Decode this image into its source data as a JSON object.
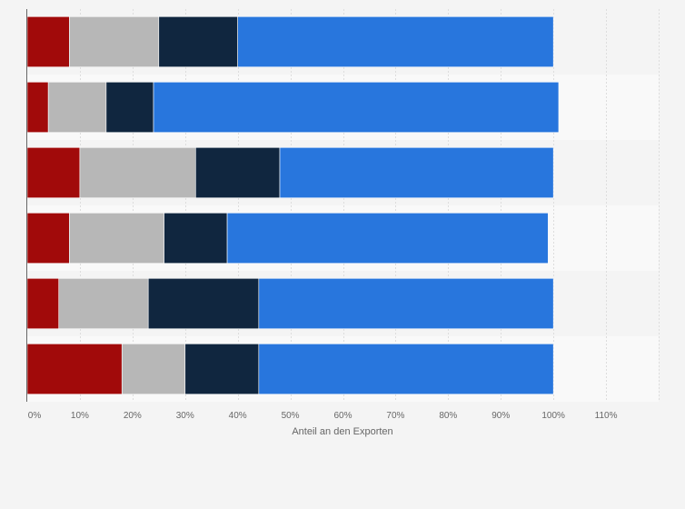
{
  "chart_data": {
    "type": "bar",
    "orientation": "horizontal",
    "stacked": true,
    "categories": [
      "",
      "",
      "",
      "",
      "",
      ""
    ],
    "series": [
      {
        "name": "",
        "color": "#a10a0a",
        "values": [
          8,
          4,
          10,
          8,
          6,
          18
        ]
      },
      {
        "name": "",
        "color": "#b7b7b7",
        "values": [
          17,
          11,
          22,
          18,
          17,
          12
        ]
      },
      {
        "name": "",
        "color": "#10263f",
        "values": [
          15,
          9,
          16,
          12,
          21,
          14
        ]
      },
      {
        "name": "",
        "color": "#2876dd",
        "values": [
          60,
          77,
          52,
          61,
          56,
          56
        ]
      }
    ],
    "xlim": [
      0,
      120
    ],
    "xticks": [
      "0%",
      "10%",
      "20%",
      "30%",
      "40%",
      "50%",
      "60%",
      "70%",
      "80%",
      "90%",
      "100%",
      "110%"
    ],
    "xlabel": "Anteil an den Exporten",
    "ylabel": "",
    "title": "",
    "legend": "none",
    "grid": "vertical"
  }
}
